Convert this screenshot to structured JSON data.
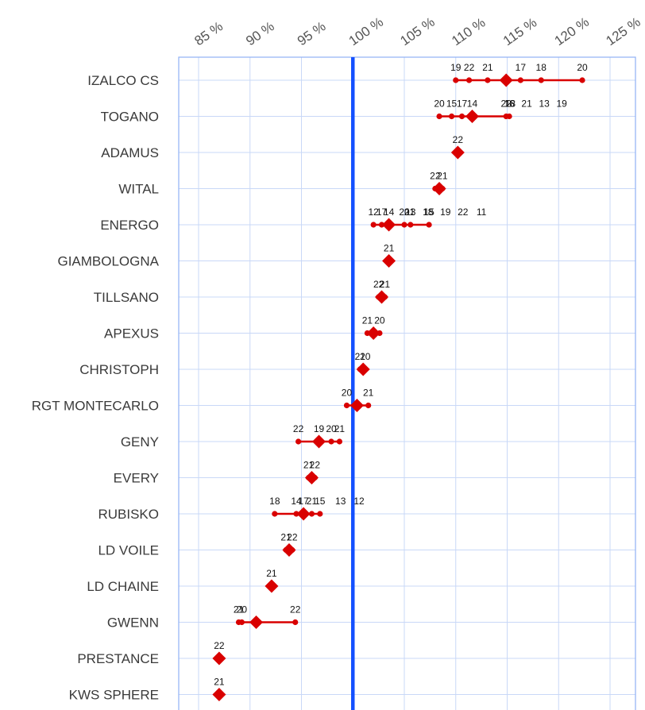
{
  "chart_data": {
    "type": "scatter",
    "title": "",
    "xlabel": "",
    "ylabel": "",
    "x_unit": "%",
    "xlim": [
      83,
      126
    ],
    "x_ticks": [
      85,
      90,
      95,
      100,
      105,
      110,
      115,
      120,
      125
    ],
    "x_tick_labels": [
      "85 %",
      "90 %",
      "95 %",
      "100 %",
      "105 %",
      "110 %",
      "115 %",
      "120 %",
      "125 %"
    ],
    "reference_line": 100,
    "grid": true,
    "colors": {
      "marker": "#d90000",
      "reference": "#1450ff",
      "grid": "#c9d8f7",
      "frame": "#8fb0f5"
    },
    "varieties": [
      {
        "name": "IZALCO CS",
        "mean": 114.9,
        "points": [
          {
            "x": 110.0,
            "label": "19"
          },
          {
            "x": 111.3,
            "label": "22"
          },
          {
            "x": 113.1,
            "label": "21"
          },
          {
            "x": 116.3,
            "label": "17"
          },
          {
            "x": 118.3,
            "label": "18"
          },
          {
            "x": 122.3,
            "label": "20"
          }
        ]
      },
      {
        "name": "TOGANO",
        "mean": 111.6,
        "points": [
          {
            "x": 108.4,
            "label": "20"
          },
          {
            "x": 109.6,
            "label": "15"
          },
          {
            "x": 110.6,
            "label": "17"
          },
          {
            "x": 111.6,
            "label": "14"
          },
          {
            "x": 114.9,
            "label": "22"
          },
          {
            "x": 115.2,
            "label": "16"
          }
        ],
        "extra_labels": [
          {
            "label": "18",
            "x": 115.3
          },
          {
            "label": "21",
            "x": 116.9
          },
          {
            "label": "13",
            "x": 118.6
          },
          {
            "label": "19",
            "x": 120.3
          }
        ]
      },
      {
        "name": "ADAMUS",
        "mean": 110.2,
        "points": [
          {
            "x": 110.2,
            "label": "22"
          }
        ]
      },
      {
        "name": "WITAL",
        "mean": 108.4,
        "points": [
          {
            "x": 108.0,
            "label": "22"
          },
          {
            "x": 108.7,
            "label": "21"
          }
        ]
      },
      {
        "name": "ENERGO",
        "mean": 103.5,
        "points": [
          {
            "x": 102.0,
            "label": "12"
          },
          {
            "x": 102.8,
            "label": "17"
          },
          {
            "x": 103.5,
            "label": "14"
          },
          {
            "x": 105.0,
            "label": "20"
          },
          {
            "x": 105.6,
            "label": "13"
          },
          {
            "x": 107.4,
            "label": "15"
          }
        ],
        "extra_labels": [
          {
            "label": "21",
            "x": 105.5
          },
          {
            "label": "18",
            "x": 107.3
          },
          {
            "label": "19",
            "x": 109.0
          },
          {
            "label": "22",
            "x": 110.7
          },
          {
            "label": "11",
            "x": 112.5
          }
        ]
      },
      {
        "name": "GIAMBOLOGNA",
        "mean": 103.5,
        "points": [
          {
            "x": 103.5,
            "label": "21"
          }
        ]
      },
      {
        "name": "TILLSANO",
        "mean": 102.8,
        "points": [
          {
            "x": 102.5,
            "label": "22"
          },
          {
            "x": 103.1,
            "label": "21"
          }
        ]
      },
      {
        "name": "APEXUS",
        "mean": 102.0,
        "points": [
          {
            "x": 101.4,
            "label": "21"
          },
          {
            "x": 102.6,
            "label": "20"
          }
        ]
      },
      {
        "name": "CHRISTOPH",
        "mean": 101.0,
        "points": [
          {
            "x": 100.7,
            "label": "21"
          },
          {
            "x": 101.2,
            "label": "20"
          }
        ]
      },
      {
        "name": "RGT MONTECARLO",
        "mean": 100.4,
        "points": [
          {
            "x": 99.4,
            "label": "20"
          },
          {
            "x": 101.5,
            "label": "21"
          }
        ]
      },
      {
        "name": "GENY",
        "mean": 96.7,
        "points": [
          {
            "x": 94.7,
            "label": "22"
          },
          {
            "x": 96.7,
            "label": "19"
          },
          {
            "x": 97.9,
            "label": "20"
          },
          {
            "x": 98.7,
            "label": "21"
          }
        ]
      },
      {
        "name": "EVERY",
        "mean": 96.0,
        "points": [
          {
            "x": 95.7,
            "label": "21"
          },
          {
            "x": 96.3,
            "label": "22"
          }
        ]
      },
      {
        "name": "RUBISKO",
        "mean": 95.2,
        "points": [
          {
            "x": 92.4,
            "label": "18"
          },
          {
            "x": 94.5,
            "label": "14"
          },
          {
            "x": 95.2,
            "label": "17"
          },
          {
            "x": 96.0,
            "label": "21"
          },
          {
            "x": 96.8,
            "label": "15"
          }
        ],
        "extra_labels": [
          {
            "label": "13",
            "x": 98.8
          },
          {
            "label": "12",
            "x": 100.6
          }
        ]
      },
      {
        "name": "LD VOILE",
        "mean": 93.8,
        "points": [
          {
            "x": 93.5,
            "label": "21"
          },
          {
            "x": 94.1,
            "label": "22"
          }
        ]
      },
      {
        "name": "LD CHAINE",
        "mean": 92.1,
        "points": [
          {
            "x": 92.1,
            "label": "21"
          }
        ]
      },
      {
        "name": "GWENN",
        "mean": 90.6,
        "points": [
          {
            "x": 88.9,
            "label": "21"
          },
          {
            "x": 89.2,
            "label": "20"
          },
          {
            "x": 94.4,
            "label": "22"
          }
        ]
      },
      {
        "name": "PRESTANCE",
        "mean": 87.0,
        "points": [
          {
            "x": 87.0,
            "label": "22"
          }
        ]
      },
      {
        "name": "KWS SPHERE",
        "mean": 87.0,
        "points": [
          {
            "x": 87.0,
            "label": "21"
          }
        ]
      }
    ]
  }
}
